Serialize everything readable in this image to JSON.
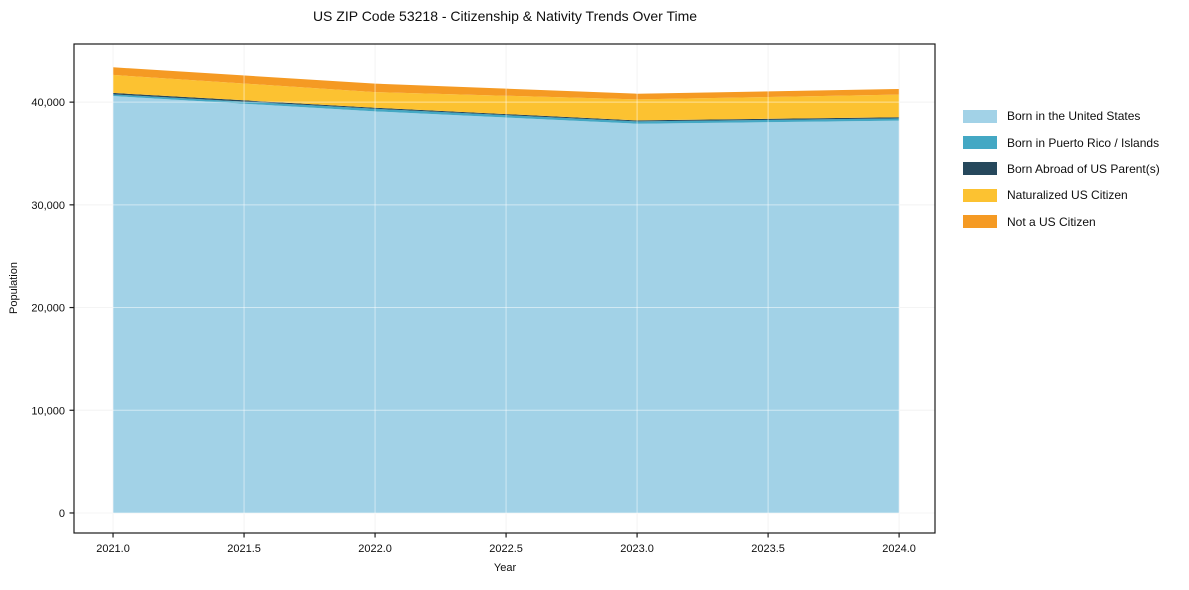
{
  "title": "US ZIP Code 53218 - Citizenship & Nativity Trends Over Time",
  "axes": {
    "x_label": "Year",
    "y_label": "Population"
  },
  "chart_data": {
    "type": "area",
    "stacked": true,
    "title": "US ZIP Code 53218 - Citizenship & Nativity Trends Over Time",
    "xlabel": "Year",
    "ylabel": "Population",
    "x": [
      2021,
      2022,
      2023,
      2024
    ],
    "series": [
      {
        "name": "Born in the United States",
        "color": "#A2D2E7",
        "values": [
          40600,
          39100,
          37900,
          38200
        ]
      },
      {
        "name": "Born in Puerto Rico / Islands",
        "color": "#44A8C4",
        "values": [
          150,
          250,
          220,
          220
        ]
      },
      {
        "name": "Born Abroad of US Parent(s)",
        "color": "#26485C",
        "values": [
          150,
          110,
          100,
          100
        ]
      },
      {
        "name": "Naturalized US Citizen",
        "color": "#FCC231",
        "values": [
          1750,
          1520,
          2050,
          2210
        ]
      },
      {
        "name": "Not a US Citizen",
        "color": "#F59A23",
        "values": [
          740,
          820,
          550,
          550
        ]
      }
    ],
    "xlim": [
      2020.851,
      2024.137
    ],
    "ylim": [
      -1950,
      45660
    ],
    "x_ticks": [
      {
        "v": 2021.0,
        "label": "2021.0"
      },
      {
        "v": 2021.5,
        "label": "2021.5"
      },
      {
        "v": 2022.0,
        "label": "2022.0"
      },
      {
        "v": 2022.5,
        "label": "2022.5"
      },
      {
        "v": 2023.0,
        "label": "2023.0"
      },
      {
        "v": 2023.5,
        "label": "2023.5"
      },
      {
        "v": 2024.0,
        "label": "2024.0"
      }
    ],
    "y_ticks": [
      {
        "v": 0,
        "label": "0"
      },
      {
        "v": 10000,
        "label": "10,000"
      },
      {
        "v": 20000,
        "label": "20,000"
      },
      {
        "v": 30000,
        "label": "30,000"
      },
      {
        "v": 40000,
        "label": "40,000"
      }
    ],
    "grid": true,
    "legend_position": "right"
  },
  "colors": {
    "background": "#ffffff",
    "grid": "#e9e9e9",
    "grid_overlay": "rgba(255,255,255,0.5)",
    "spine": "#1a1a1a",
    "text": "#0f0f0f"
  }
}
